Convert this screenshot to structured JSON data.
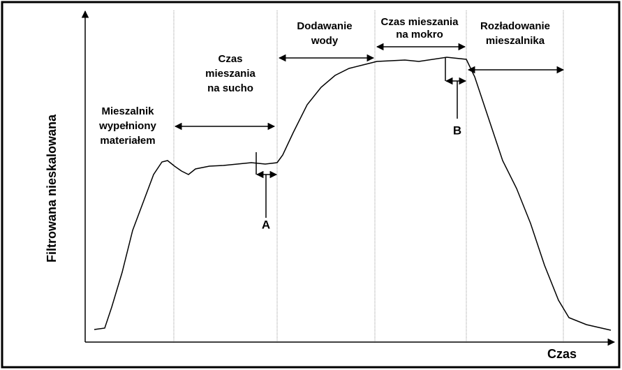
{
  "axes": {
    "y_label": "Filtrowana nieskalowana",
    "x_label": "Czas"
  },
  "phases": [
    {
      "lines": [
        "Mieszalnik",
        "wypełniony",
        "materiałem"
      ]
    },
    {
      "lines": [
        "Czas",
        "mieszania",
        "na sucho"
      ]
    },
    {
      "lines": [
        "Dodawanie",
        "wody"
      ]
    },
    {
      "lines": [
        "Czas mieszania",
        "na mokro"
      ]
    },
    {
      "lines": [
        "Rozładowanie",
        "mieszalnika"
      ]
    }
  ],
  "markers": [
    "A",
    "B"
  ]
}
